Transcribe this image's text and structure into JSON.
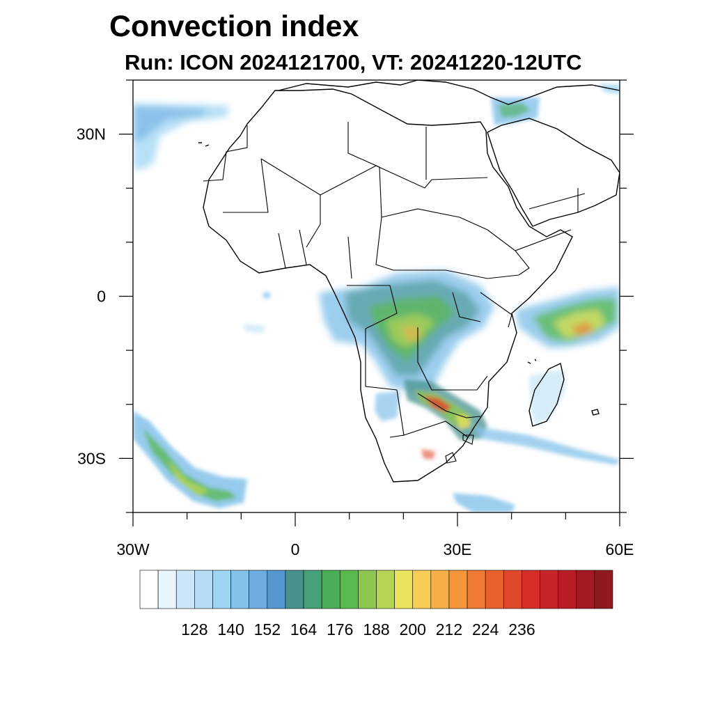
{
  "title": "Convection index",
  "subtitle": "Run: ICON 2024121700,  VT: 20241220-12UTC",
  "map": {
    "lon_range": [
      -30,
      60
    ],
    "lat_range": [
      -40,
      40
    ],
    "lon_tick_labels": [
      "30W",
      "0",
      "30E",
      "60E"
    ],
    "lat_tick_labels": [
      "30N",
      "0",
      "30S"
    ],
    "region": "Africa",
    "convection_areas": [
      {
        "region": "central-africa-congo-basin",
        "peak_level": "high"
      },
      {
        "region": "zambia-zimbabwe-band",
        "peak_level": "very-high"
      },
      {
        "region": "western-indian-ocean-band",
        "peak_level": "high"
      },
      {
        "region": "south-atlantic-band",
        "peak_level": "moderate"
      },
      {
        "region": "mozambique-channel",
        "peak_level": "moderate"
      },
      {
        "region": "north-atlantic-subtropics",
        "peak_level": "low"
      },
      {
        "region": "eastern-mediterranean",
        "peak_level": "low"
      },
      {
        "region": "south-of-south-africa",
        "peak_level": "low"
      }
    ]
  },
  "colorbar": {
    "labels": [
      "128",
      "140",
      "152",
      "164",
      "176",
      "188",
      "200",
      "212",
      "224",
      "236"
    ],
    "colors": [
      "#ffffff",
      "#e8f5fc",
      "#cce8f8",
      "#b5def6",
      "#9fd5f4",
      "#84c2ea",
      "#6fade0",
      "#5498cf",
      "#47928f",
      "#45a177",
      "#48af56",
      "#58b94d",
      "#8fc650",
      "#b5d452",
      "#e9e45c",
      "#f8cc57",
      "#f7b048",
      "#f49639",
      "#ee7a33",
      "#e9612d",
      "#e0472b",
      "#d62f29",
      "#c82529",
      "#b81d26",
      "#a41a22",
      "#8e1a1e"
    ]
  }
}
